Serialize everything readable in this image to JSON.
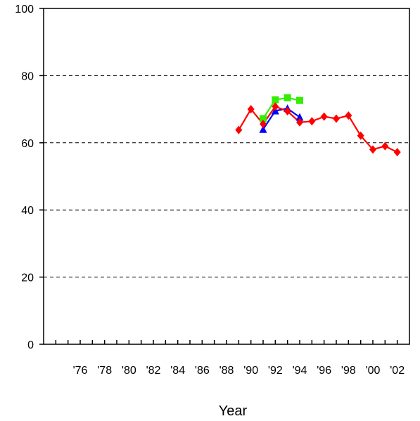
{
  "chart_data": {
    "type": "line",
    "title": "",
    "xlabel": "Year",
    "ylabel": "",
    "xlim": [
      1973,
      2003
    ],
    "ylim": [
      0,
      100
    ],
    "y_ticks": [
      0,
      20,
      40,
      60,
      80,
      100
    ],
    "x_ticks": [
      1976,
      1978,
      1980,
      1982,
      1984,
      1986,
      1988,
      1990,
      1992,
      1994,
      1996,
      1998,
      2000,
      2002
    ],
    "x_tick_labels": [
      "'76",
      "'78",
      "'80",
      "'82",
      "'84",
      "'86",
      "'88",
      "'90",
      "'92",
      "'94",
      "'96",
      "'98",
      "'00",
      "'02"
    ],
    "grid": "horizontal dashed",
    "legend": "none",
    "series": [
      {
        "color": "#33ee00",
        "marker": "square",
        "x": [
          1991,
          1992,
          1993,
          1994
        ],
        "values": [
          67.2,
          72.8,
          73.4,
          72.6
        ]
      },
      {
        "color": "#0000ff",
        "marker": "triangle",
        "x": [
          1991,
          1992,
          1993,
          1994
        ],
        "values": [
          64.0,
          69.5,
          70.2,
          67.6
        ]
      },
      {
        "color": "#ff0000",
        "marker": "diamond",
        "x": [
          1989,
          1990,
          1991,
          1992,
          1993,
          1994,
          1995,
          1996,
          1997,
          1998,
          1999,
          2000,
          2001,
          2002
        ],
        "values": [
          63.8,
          70.0,
          65.6,
          70.8,
          69.4,
          66.1,
          66.4,
          67.8,
          67.2,
          68.1,
          62.1,
          58.0,
          59.0,
          57.2
        ]
      }
    ]
  }
}
